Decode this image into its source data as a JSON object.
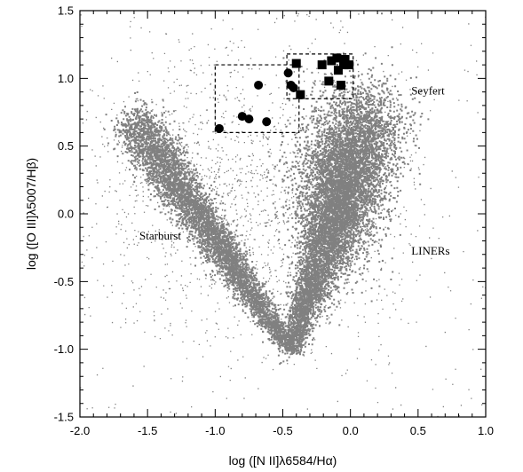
{
  "chart_data": {
    "type": "scatter",
    "title": "",
    "xlabel": "log ([N II]λ6584/Hα)",
    "ylabel": "log ([O III]λ5007/Hβ)",
    "xlim": [
      -2.0,
      1.0
    ],
    "ylim": [
      -1.5,
      1.5
    ],
    "x_ticks": [
      "-2.0",
      "-1.5",
      "-1.0",
      "-0.5",
      "0.0",
      "0.5",
      "1.0"
    ],
    "y_ticks": [
      "-1.5",
      "-1.0",
      "-0.5",
      "0.0",
      "0.5",
      "1.0",
      "1.5"
    ],
    "grid": false,
    "annotations": [
      {
        "text": "Seyfert",
        "x": 0.45,
        "y": 0.88
      },
      {
        "text": "Starburst",
        "x": -1.56,
        "y": -0.19
      },
      {
        "text": "LINERs",
        "x": 0.45,
        "y": -0.3
      }
    ],
    "background_distribution": {
      "description_units": "data",
      "color": "#808080",
      "starburst_branch": {
        "from": [
          -1.6,
          0.68
        ],
        "to": [
          -0.45,
          -1.0
        ]
      },
      "agn_branch": {
        "from": [
          -0.45,
          -1.0
        ],
        "to": [
          0.15,
          0.75
        ]
      },
      "apex": [
        -0.4,
        -1.05
      ]
    },
    "series": [
      {
        "marker": "circle",
        "color": "#000000",
        "x": [
          -0.97,
          -0.8,
          -0.75,
          -0.68,
          -0.62,
          -0.46,
          -0.44,
          -0.42
        ],
        "y": [
          0.63,
          0.72,
          0.7,
          0.95,
          0.68,
          1.04,
          0.95,
          0.93
        ]
      },
      {
        "marker": "square",
        "color": "#000000",
        "x": [
          -0.4,
          -0.37,
          -0.21,
          -0.16,
          -0.14,
          -0.1,
          -0.09,
          -0.07,
          -0.05,
          -0.04,
          -0.01
        ],
        "y": [
          1.11,
          0.88,
          1.1,
          0.98,
          1.13,
          1.15,
          1.06,
          0.95,
          1.1,
          1.14,
          1.1
        ]
      }
    ],
    "boxes": [
      {
        "x": [
          -1.0,
          -0.38
        ],
        "y": [
          0.6,
          1.1
        ],
        "style": "dashed"
      },
      {
        "x": [
          -0.47,
          0.02
        ],
        "y": [
          0.85,
          1.18
        ],
        "style": "dashed"
      }
    ]
  }
}
